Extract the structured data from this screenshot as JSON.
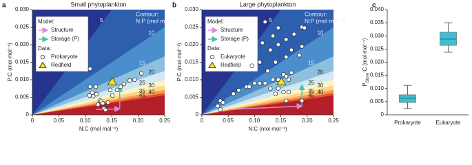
{
  "chart_data": [
    {
      "type": "contour-scatter",
      "panel_label": "a",
      "title": "Small phytoplankton",
      "xlabel": "N:C (mol mol⁻¹)",
      "ylabel": "P:C (mol mol⁻¹)",
      "xlim": [
        0,
        0.25
      ],
      "xticks": [
        0,
        0.05,
        {
          "value": 0.1,
          "label": "0.10"
        },
        0.15,
        {
          "value": 0.2,
          "label": "0.20"
        },
        0.25
      ],
      "ylim": [
        0,
        0.03
      ],
      "yticks": [
        0,
        0.005,
        {
          "value": 0.01,
          "label": "0.010"
        },
        0.015,
        {
          "value": 0.02,
          "label": "0.020"
        },
        0.025,
        {
          "value": 0.03,
          "label": "0.030"
        }
      ],
      "contour_title": [
        "Contour:",
        "N:P (mol mol⁻¹)"
      ],
      "contour_levels": [
        5,
        10,
        15,
        20,
        25,
        30,
        35,
        40,
        45
      ],
      "band_colors": [
        "#26348f",
        "#2d5fae",
        "#4a8fcb",
        "#8cc0de",
        "#d3e8f1",
        "#fbf4c3",
        "#fdd486",
        "#f99a55",
        "#e3532f",
        "#b41f2a"
      ],
      "legend_model_title": "Model:",
      "legend_data_title": "Data:",
      "series": [
        {
          "name": "Structure",
          "kind": "line",
          "color": "#d68fd8",
          "x": [
            0.12,
            0.165
          ],
          "y": [
            0.0015,
            0.0017
          ]
        },
        {
          "name": "Storage (P)",
          "kind": "line",
          "color": "#45c2b8",
          "x": [
            0.165,
            0.165
          ],
          "y": [
            0.0017,
            0.008
          ]
        },
        {
          "name": "Prokaryote",
          "kind": "circle",
          "color": "#ffffff",
          "x": [
            0.109,
            0.12,
            0.115,
            0.128,
            0.147,
            0.151,
            0.16,
            0.167,
            0.173,
            0.184,
            0.193,
            0.206,
            0.13,
            0.133,
            0.124,
            0.135,
            0.138,
            0.143,
            0.113,
            0.108,
            0.121,
            0.109
          ],
          "y": [
            0.008,
            0.008,
            0.0053,
            0.0041,
            0.0071,
            0.0055,
            0.0071,
            0.008,
            0.0088,
            0.0098,
            0.01,
            0.0118,
            0.0039,
            0.0033,
            0.0029,
            0.0018,
            0.0014,
            0.0035,
            0.0063,
            0.0055,
            0.0059,
            0.0131
          ]
        },
        {
          "name": "Redfield",
          "kind": "triangle",
          "color": "#f5e31a",
          "x": [
            0.151
          ],
          "y": [
            0.00943
          ]
        }
      ]
    },
    {
      "type": "contour-scatter",
      "panel_label": "b",
      "title": "Large phytoplankton",
      "xlabel": "N:C (mol mol⁻¹)",
      "ylabel": "P:C (mol mol⁻¹)",
      "xlim": [
        0,
        0.25
      ],
      "xticks": [
        0,
        0.05,
        {
          "value": 0.1,
          "label": "0.10"
        },
        0.15,
        {
          "value": 0.2,
          "label": "0.20"
        },
        0.25
      ],
      "ylim": [
        0,
        0.03
      ],
      "yticks": [
        0,
        0.005,
        {
          "value": 0.01,
          "label": "0.010"
        },
        0.015,
        {
          "value": 0.02,
          "label": "0.020"
        },
        0.025,
        {
          "value": 0.03,
          "label": "0.030"
        }
      ],
      "contour_title": [
        "Contour:",
        "N:P (mol mol⁻¹)"
      ],
      "contour_levels": [
        5,
        10,
        15,
        20,
        25,
        30,
        35,
        40,
        45
      ],
      "band_colors": [
        "#26348f",
        "#2d5fae",
        "#4a8fcb",
        "#8cc0de",
        "#d3e8f1",
        "#fbf4c3",
        "#fdd486",
        "#f99a55",
        "#e3532f",
        "#b41f2a"
      ],
      "legend_model_title": "Model:",
      "legend_data_title": "Data:",
      "series": [
        {
          "name": "Structure",
          "kind": "line",
          "color": "#d68fd8",
          "x": [
            0.05,
            0.19
          ],
          "y": [
            0.0015,
            0.0025
          ]
        },
        {
          "name": "Storage (P)",
          "kind": "line",
          "color": "#45c2b8",
          "x": [
            0.19,
            0.19
          ],
          "y": [
            0.0025,
            0.0085
          ]
        },
        {
          "name": "Eukaryote",
          "kind": "circle",
          "color": "#ffffff",
          "x": [
            0.12,
            0.145,
            0.19,
            0.195,
            0.135,
            0.16,
            0.175,
            0.115,
            0.145,
            0.13,
            0.17,
            0.19,
            0.185,
            0.16,
            0.11,
            0.14,
            0.095,
            0.125,
            0.17,
            0.155,
            0.16,
            0.145,
            0.135,
            0.165,
            0.1,
            0.11,
            0.12,
            0.085,
            0.09,
            0.13,
            0.145,
            0.155,
            0.165,
            0.14,
            0.06,
            0.07,
            0.16,
            0.19,
            0.035,
            0.04,
            0.03,
            0.035
          ],
          "y": [
            0.0265,
            0.0248,
            0.025,
            0.0248,
            0.0225,
            0.0215,
            0.023,
            0.0205,
            0.02,
            0.0185,
            0.0185,
            0.0195,
            0.017,
            0.0165,
            0.015,
            0.015,
            0.014,
            0.0125,
            0.012,
            0.0115,
            0.011,
            0.01,
            0.01,
            0.01,
            0.009,
            0.009,
            0.009,
            0.008,
            0.008,
            0.0075,
            0.0075,
            0.0065,
            0.0065,
            0.006,
            0.006,
            0.007,
            0.004,
            0.004,
            0.004,
            0.0035,
            0.0025,
            0.0015
          ]
        },
        {
          "name": "Redfield",
          "kind": "triangle",
          "color": "#f5e31a",
          "x": [
            0.151
          ],
          "y": [
            0.00943
          ]
        }
      ]
    },
    {
      "type": "box",
      "panel_label": "c",
      "ylabel": [
        "P",
        "Store",
        ":C (mol mol⁻¹)"
      ],
      "categories": [
        "Prokaryote",
        "Eukaryote"
      ],
      "color": "#3fbfcf",
      "ylim": [
        0,
        0.04
      ],
      "yticks": [
        0,
        0.005,
        {
          "value": 0.01,
          "label": "0.010"
        },
        0.015,
        {
          "value": 0.02,
          "label": "0.020"
        },
        0.025,
        {
          "value": 0.03,
          "label": "0.030"
        },
        0.035,
        {
          "value": 0.04,
          "label": "0.040"
        }
      ],
      "boxes": [
        {
          "min": 0.0024,
          "q1": 0.0047,
          "median": 0.0063,
          "q3": 0.0076,
          "max": 0.0112
        },
        {
          "min": 0.0238,
          "q1": 0.0264,
          "median": 0.0288,
          "q3": 0.0314,
          "max": 0.035
        }
      ]
    }
  ]
}
